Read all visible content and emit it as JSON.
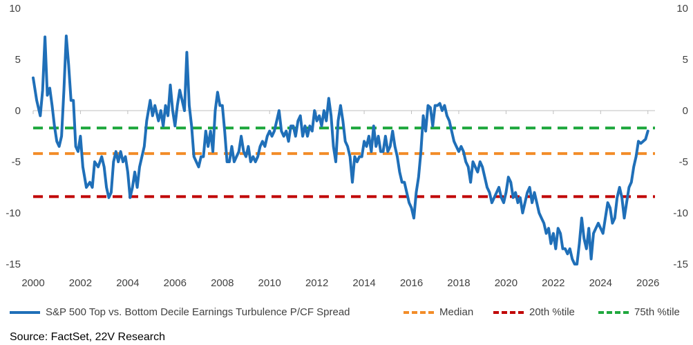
{
  "chart_data": {
    "type": "line",
    "title": "",
    "xlabel": "",
    "ylabel": "",
    "xlim": [
      2000,
      2026.3
    ],
    "ylim": [
      -15,
      10
    ],
    "x_ticks": [
      "2000",
      "2002",
      "2004",
      "2006",
      "2008",
      "2010",
      "2012",
      "2014",
      "2016",
      "2018",
      "2020",
      "2022",
      "2024",
      "2026"
    ],
    "y_ticks_left": [
      "10",
      "5",
      "0",
      "-5",
      "-10",
      "-15"
    ],
    "y_ticks_right": [
      "10",
      "5",
      "0",
      "-5",
      "-10",
      "-15"
    ],
    "grid": false,
    "legend_position": "bottom",
    "series": [
      {
        "name": "S&P 500 Top vs. Bottom Decile Earnings Turbulence P/CF Spread",
        "color": "#1F6FB8",
        "style": "solid",
        "points": [
          [
            2000.0,
            3.2
          ],
          [
            2000.15,
            1.0
          ],
          [
            2000.3,
            -0.5
          ],
          [
            2000.4,
            2.0
          ],
          [
            2000.5,
            7.2
          ],
          [
            2000.6,
            1.5
          ],
          [
            2000.7,
            2.2
          ],
          [
            2000.8,
            0.5
          ],
          [
            2000.9,
            -1.5
          ],
          [
            2001.0,
            -3.0
          ],
          [
            2001.1,
            -3.5
          ],
          [
            2001.2,
            -2.5
          ],
          [
            2001.3,
            2.0
          ],
          [
            2001.4,
            7.3
          ],
          [
            2001.5,
            4.5
          ],
          [
            2001.6,
            1.0
          ],
          [
            2001.7,
            1.0
          ],
          [
            2001.8,
            -3.5
          ],
          [
            2001.9,
            -4.0
          ],
          [
            2002.0,
            -2.5
          ],
          [
            2002.1,
            -5.5
          ],
          [
            2002.25,
            -7.5
          ],
          [
            2002.4,
            -7.0
          ],
          [
            2002.5,
            -7.5
          ],
          [
            2002.6,
            -5.0
          ],
          [
            2002.75,
            -5.5
          ],
          [
            2002.9,
            -4.5
          ],
          [
            2003.0,
            -5.5
          ],
          [
            2003.1,
            -7.5
          ],
          [
            2003.2,
            -8.5
          ],
          [
            2003.3,
            -8.0
          ],
          [
            2003.4,
            -5.0
          ],
          [
            2003.5,
            -4.0
          ],
          [
            2003.6,
            -5.0
          ],
          [
            2003.7,
            -4.0
          ],
          [
            2003.8,
            -5.0
          ],
          [
            2003.9,
            -4.5
          ],
          [
            2004.0,
            -6.0
          ],
          [
            2004.1,
            -8.5
          ],
          [
            2004.2,
            -7.5
          ],
          [
            2004.3,
            -6.0
          ],
          [
            2004.4,
            -7.5
          ],
          [
            2004.5,
            -5.5
          ],
          [
            2004.6,
            -4.5
          ],
          [
            2004.7,
            -3.5
          ],
          [
            2004.8,
            -1.0
          ],
          [
            2004.95,
            1.0
          ],
          [
            2005.05,
            -0.5
          ],
          [
            2005.15,
            0.5
          ],
          [
            2005.3,
            -1.0
          ],
          [
            2005.4,
            0.0
          ],
          [
            2005.5,
            -1.5
          ],
          [
            2005.6,
            0.5
          ],
          [
            2005.7,
            -0.5
          ],
          [
            2005.8,
            2.5
          ],
          [
            2005.9,
            0.0
          ],
          [
            2006.0,
            -1.5
          ],
          [
            2006.1,
            0.5
          ],
          [
            2006.2,
            2.0
          ],
          [
            2006.3,
            1.0
          ],
          [
            2006.4,
            0.0
          ],
          [
            2006.5,
            5.7
          ],
          [
            2006.6,
            0.5
          ],
          [
            2006.7,
            -1.5
          ],
          [
            2006.8,
            -4.5
          ],
          [
            2006.9,
            -5.0
          ],
          [
            2007.0,
            -5.5
          ],
          [
            2007.1,
            -4.5
          ],
          [
            2007.2,
            -4.5
          ],
          [
            2007.3,
            -2.0
          ],
          [
            2007.4,
            -3.5
          ],
          [
            2007.5,
            -2.0
          ],
          [
            2007.6,
            -4.0
          ],
          [
            2007.7,
            0.0
          ],
          [
            2007.8,
            1.8
          ],
          [
            2007.9,
            0.5
          ],
          [
            2008.0,
            0.5
          ],
          [
            2008.1,
            -2.0
          ],
          [
            2008.2,
            -5.0
          ],
          [
            2008.3,
            -5.0
          ],
          [
            2008.4,
            -3.5
          ],
          [
            2008.5,
            -5.0
          ],
          [
            2008.6,
            -4.5
          ],
          [
            2008.7,
            -4.0
          ],
          [
            2008.8,
            -2.5
          ],
          [
            2008.9,
            -4.0
          ],
          [
            2009.0,
            -4.5
          ],
          [
            2009.1,
            -3.5
          ],
          [
            2009.2,
            -5.0
          ],
          [
            2009.3,
            -4.5
          ],
          [
            2009.4,
            -5.0
          ],
          [
            2009.5,
            -4.5
          ],
          [
            2009.6,
            -3.5
          ],
          [
            2009.7,
            -3.0
          ],
          [
            2009.8,
            -3.5
          ],
          [
            2009.9,
            -2.5
          ],
          [
            2010.0,
            -2.0
          ],
          [
            2010.1,
            -2.5
          ],
          [
            2010.2,
            -2.0
          ],
          [
            2010.3,
            -1.0
          ],
          [
            2010.4,
            0.0
          ],
          [
            2010.5,
            -2.0
          ],
          [
            2010.6,
            -2.5
          ],
          [
            2010.7,
            -2.0
          ],
          [
            2010.8,
            -3.0
          ],
          [
            2010.9,
            -1.5
          ],
          [
            2011.0,
            -1.5
          ],
          [
            2011.1,
            -2.5
          ],
          [
            2011.2,
            -1.0
          ],
          [
            2011.3,
            -0.5
          ],
          [
            2011.4,
            -2.5
          ],
          [
            2011.5,
            -1.5
          ],
          [
            2011.6,
            -2.5
          ],
          [
            2011.7,
            -1.5
          ],
          [
            2011.8,
            -2.0
          ],
          [
            2011.9,
            0.0
          ],
          [
            2012.0,
            -1.0
          ],
          [
            2012.1,
            -0.5
          ],
          [
            2012.2,
            -1.5
          ],
          [
            2012.3,
            0.0
          ],
          [
            2012.4,
            -1.0
          ],
          [
            2012.5,
            1.2
          ],
          [
            2012.6,
            -0.5
          ],
          [
            2012.7,
            -3.5
          ],
          [
            2012.8,
            -5.0
          ],
          [
            2012.9,
            -1.0
          ],
          [
            2013.0,
            0.5
          ],
          [
            2013.1,
            -1.0
          ],
          [
            2013.2,
            -3.0
          ],
          [
            2013.3,
            -3.5
          ],
          [
            2013.4,
            -4.5
          ],
          [
            2013.5,
            -7.0
          ],
          [
            2013.6,
            -4.5
          ],
          [
            2013.7,
            -5.0
          ],
          [
            2013.8,
            -4.5
          ],
          [
            2013.9,
            -4.5
          ],
          [
            2014.0,
            -3.0
          ],
          [
            2014.1,
            -3.5
          ],
          [
            2014.2,
            -2.5
          ],
          [
            2014.3,
            -4.0
          ],
          [
            2014.4,
            -1.5
          ],
          [
            2014.5,
            -3.5
          ],
          [
            2014.6,
            -2.5
          ],
          [
            2014.7,
            -4.0
          ],
          [
            2014.8,
            -4.0
          ],
          [
            2014.9,
            -2.5
          ],
          [
            2015.0,
            -4.0
          ],
          [
            2015.1,
            -3.5
          ],
          [
            2015.2,
            -2.0
          ],
          [
            2015.3,
            -3.5
          ],
          [
            2015.4,
            -4.5
          ],
          [
            2015.5,
            -6.0
          ],
          [
            2015.6,
            -7.0
          ],
          [
            2015.7,
            -7.0
          ],
          [
            2015.8,
            -8.0
          ],
          [
            2015.9,
            -9.0
          ],
          [
            2016.0,
            -9.5
          ],
          [
            2016.1,
            -10.5
          ],
          [
            2016.2,
            -8.0
          ],
          [
            2016.3,
            -6.5
          ],
          [
            2016.4,
            -4.0
          ],
          [
            2016.5,
            -0.5
          ],
          [
            2016.6,
            -2.0
          ],
          [
            2016.7,
            0.5
          ],
          [
            2016.8,
            0.3
          ],
          [
            2016.9,
            -1.5
          ],
          [
            2017.0,
            0.5
          ],
          [
            2017.1,
            0.5
          ],
          [
            2017.2,
            0.7
          ],
          [
            2017.3,
            0.0
          ],
          [
            2017.4,
            0.5
          ],
          [
            2017.5,
            -0.5
          ],
          [
            2017.6,
            -1.0
          ],
          [
            2017.7,
            -2.0
          ],
          [
            2017.8,
            -3.0
          ],
          [
            2017.9,
            -3.5
          ],
          [
            2018.0,
            -4.0
          ],
          [
            2018.1,
            -3.5
          ],
          [
            2018.2,
            -4.0
          ],
          [
            2018.3,
            -5.0
          ],
          [
            2018.4,
            -5.5
          ],
          [
            2018.5,
            -7.0
          ],
          [
            2018.6,
            -5.0
          ],
          [
            2018.7,
            -5.5
          ],
          [
            2018.8,
            -6.0
          ],
          [
            2018.9,
            -5.0
          ],
          [
            2019.0,
            -5.5
          ],
          [
            2019.1,
            -6.5
          ],
          [
            2019.2,
            -7.5
          ],
          [
            2019.3,
            -8.0
          ],
          [
            2019.4,
            -9.0
          ],
          [
            2019.5,
            -8.5
          ],
          [
            2019.6,
            -8.0
          ],
          [
            2019.7,
            -7.5
          ],
          [
            2019.8,
            -8.5
          ],
          [
            2019.9,
            -9.0
          ],
          [
            2020.0,
            -8.0
          ],
          [
            2020.1,
            -6.5
          ],
          [
            2020.2,
            -7.0
          ],
          [
            2020.3,
            -8.5
          ],
          [
            2020.4,
            -8.0
          ],
          [
            2020.5,
            -9.0
          ],
          [
            2020.6,
            -8.5
          ],
          [
            2020.7,
            -10.0
          ],
          [
            2020.8,
            -9.0
          ],
          [
            2020.9,
            -8.0
          ],
          [
            2021.0,
            -7.5
          ],
          [
            2021.1,
            -9.0
          ],
          [
            2021.2,
            -8.0
          ],
          [
            2021.3,
            -9.0
          ],
          [
            2021.4,
            -10.0
          ],
          [
            2021.5,
            -10.5
          ],
          [
            2021.6,
            -11.0
          ],
          [
            2021.7,
            -12.0
          ],
          [
            2021.8,
            -11.5
          ],
          [
            2021.9,
            -13.0
          ],
          [
            2022.0,
            -12.0
          ],
          [
            2022.1,
            -13.5
          ],
          [
            2022.2,
            -11.5
          ],
          [
            2022.3,
            -12.0
          ],
          [
            2022.4,
            -13.5
          ],
          [
            2022.5,
            -13.5
          ],
          [
            2022.6,
            -14.0
          ],
          [
            2022.7,
            -13.5
          ],
          [
            2022.8,
            -14.5
          ],
          [
            2022.9,
            -15.0
          ],
          [
            2023.0,
            -15.0
          ],
          [
            2023.1,
            -13.0
          ],
          [
            2023.2,
            -10.5
          ],
          [
            2023.3,
            -12.5
          ],
          [
            2023.4,
            -13.5
          ],
          [
            2023.5,
            -11.5
          ],
          [
            2023.6,
            -14.5
          ],
          [
            2023.7,
            -12.0
          ],
          [
            2023.8,
            -11.5
          ],
          [
            2023.9,
            -11.0
          ],
          [
            2024.0,
            -11.5
          ],
          [
            2024.1,
            -12.0
          ],
          [
            2024.2,
            -10.5
          ],
          [
            2024.3,
            -9.0
          ],
          [
            2024.4,
            -9.5
          ],
          [
            2024.5,
            -11.0
          ],
          [
            2024.6,
            -10.5
          ],
          [
            2024.7,
            -8.5
          ],
          [
            2024.8,
            -7.5
          ],
          [
            2024.9,
            -8.5
          ],
          [
            2025.0,
            -10.5
          ],
          [
            2025.1,
            -9.0
          ],
          [
            2025.2,
            -7.5
          ],
          [
            2025.3,
            -7.0
          ],
          [
            2025.4,
            -5.5
          ],
          [
            2025.5,
            -4.5
          ],
          [
            2025.6,
            -3.0
          ],
          [
            2025.7,
            -3.2
          ],
          [
            2025.8,
            -3.0
          ],
          [
            2025.9,
            -2.8
          ],
          [
            2026.0,
            -2.0
          ]
        ]
      },
      {
        "name": "Median",
        "color": "#F28C28",
        "style": "dashed",
        "value": -4.2
      },
      {
        "name": "20th %tile",
        "color": "#C00000",
        "style": "dashed",
        "value": -8.4
      },
      {
        "name": "75th %tile",
        "color": "#1FA83E",
        "style": "dashed",
        "value": -1.7
      }
    ]
  },
  "legend": {
    "items": [
      {
        "label": "S&P 500 Top vs. Bottom Decile Earnings Turbulence P/CF Spread",
        "color": "#1F6FB8",
        "style": "solid"
      },
      {
        "label": "Median",
        "color": "#F28C28",
        "style": "dashed"
      },
      {
        "label": "20th %tile",
        "color": "#C00000",
        "style": "dashed"
      },
      {
        "label": "75th %tile",
        "color": "#1FA83E",
        "style": "dashed"
      }
    ]
  },
  "source": "Source: FactSet, 22V Research"
}
